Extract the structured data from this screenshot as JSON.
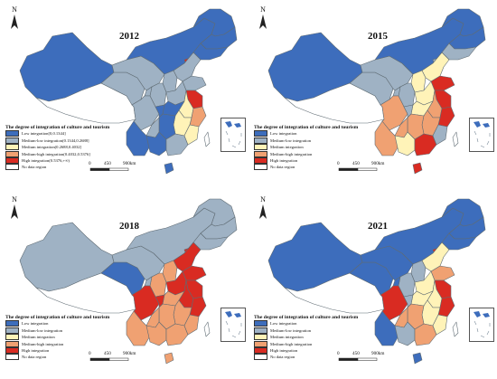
{
  "colors": {
    "low": "#3d6dbc",
    "medium_low": "#9fb2c4",
    "medium": "#fff3b8",
    "medium_high": "#f0a172",
    "high": "#d92b22",
    "no_data": "#ffffff",
    "border": "#5f6b73"
  },
  "legend_labels": {
    "no_data": "No data region",
    "scale_0": "0",
    "scale_450": "450",
    "scale_900": "900km",
    "north": "N"
  },
  "panels": [
    {
      "year": "2012",
      "legend_title": "The degree of integration of culture and tourism",
      "legend_items": [
        {
          "key": "low",
          "label": "Low integration[0,0.1344]"
        },
        {
          "key": "medium_low",
          "label": "Medium-low integration(0.1344,0.2688]"
        },
        {
          "key": "medium",
          "label": "Medium integration(0.2688,0.4032]"
        },
        {
          "key": "medium_high",
          "label": "Medium-high integration(0.4032,0.5376]"
        },
        {
          "key": "high",
          "label": "High integration(0.5376,+∞)"
        }
      ],
      "regions": {
        "xinjiang": "low",
        "tibet": "no_data",
        "qinghai": "medium_low",
        "gansu": "medium_low",
        "innermongolia": "low",
        "heilongjiang": "low",
        "jilin": "low",
        "liaoning": "low",
        "beijing": "high",
        "hebei": "medium_low",
        "shanxi": "medium_low",
        "shaanxi": "medium_low",
        "ningxia": "medium_low",
        "shandong": "medium_low",
        "henan": "medium_low",
        "jiangsu": "high",
        "anhui": "medium",
        "hubei": "low",
        "sichuan": "medium_low",
        "chongqing": "low",
        "zhejiang": "medium_high",
        "jiangxi": "medium",
        "hunan": "low",
        "guizhou": "medium_low",
        "yunnan": "low",
        "guangxi": "low",
        "guangdong": "medium_low",
        "fujian": "medium",
        "hainan": "low",
        "taiwan": "no_data"
      }
    },
    {
      "year": "2015",
      "legend_title": "The degree of integration of culture and tourism",
      "legend_items": [
        {
          "key": "low",
          "label": "Low integration"
        },
        {
          "key": "medium_low",
          "label": "Medium-low integration"
        },
        {
          "key": "medium",
          "label": "Medium integration"
        },
        {
          "key": "medium_high",
          "label": "Medium-high integration"
        },
        {
          "key": "high",
          "label": "High integration"
        }
      ],
      "regions": {
        "xinjiang": "low",
        "tibet": "no_data",
        "qinghai": "medium_low",
        "gansu": "medium_low",
        "innermongolia": "low",
        "heilongjiang": "low",
        "jilin": "low",
        "liaoning": "medium_low",
        "beijing": "medium_low",
        "hebei": "medium",
        "shanxi": "medium",
        "shaanxi": "medium_low",
        "ningxia": "medium_low",
        "shandong": "high",
        "henan": "medium",
        "jiangsu": "high",
        "anhui": "medium_high",
        "hubei": "medium",
        "sichuan": "medium_high",
        "chongqing": "medium_low",
        "zhejiang": "high",
        "jiangxi": "medium_high",
        "hunan": "medium_high",
        "guizhou": "medium_high",
        "yunnan": "medium_high",
        "guangxi": "medium",
        "guangdong": "high",
        "fujian": "medium_low",
        "hainan": "high",
        "taiwan": "no_data"
      }
    },
    {
      "year": "2018",
      "legend_title": "The degree of integration of culture and tourism",
      "legend_items": [
        {
          "key": "low",
          "label": "Low integration"
        },
        {
          "key": "medium_low",
          "label": "Medium-low integration"
        },
        {
          "key": "medium",
          "label": "Medium integration"
        },
        {
          "key": "medium_high",
          "label": "Medium-high integration"
        },
        {
          "key": "high",
          "label": "High integration"
        }
      ],
      "regions": {
        "xinjiang": "medium_low",
        "tibet": "no_data",
        "qinghai": "low",
        "gansu": "medium_low",
        "innermongolia": "medium_low",
        "heilongjiang": "medium_low",
        "jilin": "medium_low",
        "liaoning": "medium_low",
        "beijing": "high",
        "hebei": "high",
        "shanxi": "medium_high",
        "shaanxi": "medium_high",
        "ningxia": "medium_low",
        "shandong": "high",
        "henan": "high",
        "jiangsu": "high",
        "anhui": "high",
        "hubei": "medium_high",
        "sichuan": "high",
        "chongqing": "high",
        "zhejiang": "high",
        "jiangxi": "medium_high",
        "hunan": "medium_high",
        "guizhou": "medium_high",
        "yunnan": "medium_high",
        "guangxi": "medium_high",
        "guangdong": "medium_high",
        "fujian": "medium_high",
        "hainan": "medium_high",
        "taiwan": "no_data"
      }
    },
    {
      "year": "2021",
      "legend_title": "The degree of integration of culture and tourism",
      "legend_items": [
        {
          "key": "low",
          "label": "Low integration"
        },
        {
          "key": "medium_low",
          "label": "Medium-low integration"
        },
        {
          "key": "medium",
          "label": "Medium integration"
        },
        {
          "key": "medium_high",
          "label": "Medium-high integration"
        },
        {
          "key": "high",
          "label": "High integration"
        }
      ],
      "regions": {
        "xinjiang": "low",
        "tibet": "no_data",
        "qinghai": "low",
        "gansu": "low",
        "innermongolia": "low",
        "heilongjiang": "low",
        "jilin": "low",
        "liaoning": "low",
        "beijing": "high",
        "hebei": "medium",
        "shanxi": "medium_low",
        "shaanxi": "medium_low",
        "ningxia": "low",
        "shandong": "medium_high",
        "henan": "medium",
        "jiangsu": "high",
        "anhui": "medium",
        "hubei": "medium",
        "sichuan": "high",
        "chongqing": "medium_low",
        "zhejiang": "high",
        "jiangxi": "medium",
        "hunan": "medium_high",
        "guizhou": "medium_high",
        "yunnan": "low",
        "guangxi": "medium_low",
        "guangdong": "medium_high",
        "fujian": "medium",
        "hainan": "low",
        "taiwan": "no_data"
      }
    }
  ]
}
